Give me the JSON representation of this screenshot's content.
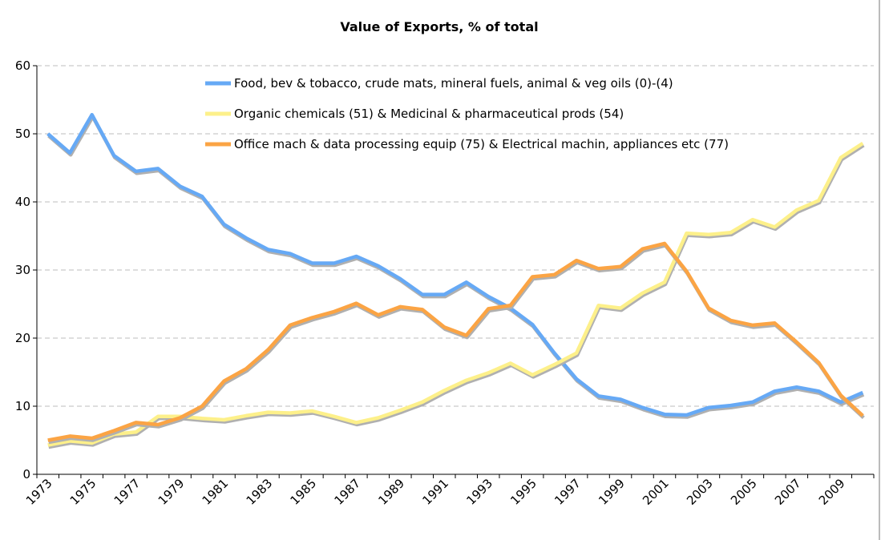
{
  "chart_data": {
    "type": "line",
    "title": "Value of Exports, % of total",
    "xlabel": "",
    "ylabel": "",
    "ylim": [
      0,
      60
    ],
    "yticks": [
      0,
      10,
      20,
      30,
      40,
      50,
      60
    ],
    "grid": true,
    "legend_position": "top-center",
    "x": [
      1973,
      1974,
      1975,
      1976,
      1977,
      1978,
      1979,
      1980,
      1981,
      1982,
      1983,
      1984,
      1985,
      1986,
      1987,
      1988,
      1989,
      1990,
      1991,
      1992,
      1993,
      1994,
      1995,
      1996,
      1997,
      1998,
      1999,
      2000,
      2001,
      2002,
      2003,
      2004,
      2005,
      2006,
      2007,
      2008,
      2009,
      2010
    ],
    "xtick_labels": [
      "1973",
      "1975",
      "1977",
      "1979",
      "1981",
      "1983",
      "1985",
      "1987",
      "1989",
      "1991",
      "1993",
      "1995",
      "1997",
      "1999",
      "2001",
      "2003",
      "2005",
      "2007",
      "2009"
    ],
    "series": [
      {
        "name": "Food, bev & tobacco, crude mats, mineral fuels, animal & veg oils (0)-(4)",
        "color": "#66a9f5",
        "values": [
          50.0,
          47.2,
          52.8,
          46.8,
          44.5,
          44.9,
          42.3,
          40.8,
          36.7,
          34.7,
          33.0,
          32.4,
          31.0,
          31.0,
          32.0,
          30.6,
          28.7,
          26.4,
          26.4,
          28.2,
          26.1,
          24.4,
          22.0,
          17.8,
          14.0,
          11.5,
          11.0,
          9.8,
          8.8,
          8.7,
          9.8,
          10.1,
          10.6,
          12.2,
          12.8,
          12.2,
          10.6,
          12.0
        ]
      },
      {
        "name": "Organic chemicals (51) & Medicinal & pharmaceutical prods (54)",
        "color": "#fdf08a",
        "values": [
          4.3,
          4.9,
          4.6,
          5.9,
          6.2,
          8.5,
          8.5,
          8.2,
          8.0,
          8.6,
          9.1,
          9.0,
          9.3,
          8.5,
          7.6,
          8.3,
          9.4,
          10.6,
          12.3,
          13.8,
          14.9,
          16.3,
          14.6,
          16.1,
          17.8,
          24.8,
          24.4,
          26.6,
          28.2,
          35.4,
          35.2,
          35.5,
          37.4,
          36.3,
          38.8,
          40.2,
          46.5,
          48.6
        ]
      },
      {
        "name": "Office mach & data processing equip (75) & Electrical machin, appliances etc (77)",
        "color": "#fba444",
        "values": [
          5.0,
          5.6,
          5.3,
          6.4,
          7.6,
          7.3,
          8.3,
          10.0,
          13.7,
          15.5,
          18.3,
          21.9,
          23.0,
          23.9,
          25.1,
          23.4,
          24.6,
          24.2,
          21.6,
          20.4,
          24.3,
          24.8,
          29.0,
          29.3,
          31.4,
          30.2,
          30.5,
          33.1,
          33.9,
          29.8,
          24.4,
          22.6,
          21.9,
          22.2,
          19.4,
          16.4,
          11.6,
          8.6
        ]
      }
    ]
  }
}
